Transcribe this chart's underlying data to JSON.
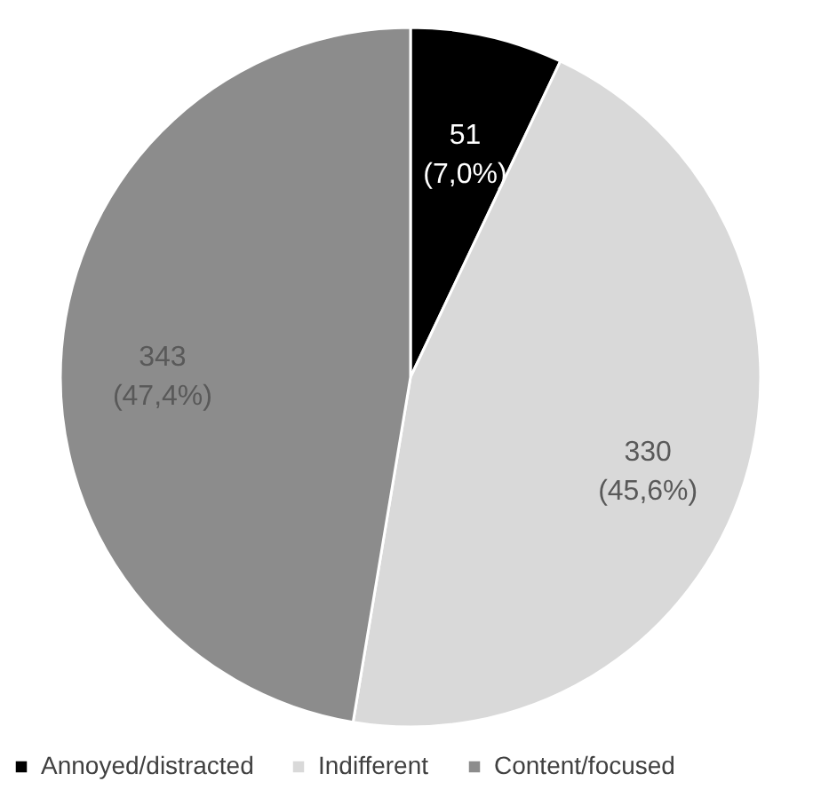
{
  "chart_data": {
    "type": "pie",
    "categories": [
      "Annoyed/distracted",
      "Indifferent",
      "Content/focused"
    ],
    "values": [
      51,
      330,
      343
    ],
    "colors": [
      "#000000",
      "#d9d9d9",
      "#8c8c8c"
    ],
    "value_labels": [
      "51\n(7,0%)",
      "330\n(45,6%)",
      "343\n(47,4%)"
    ],
    "legend": "bottom"
  }
}
